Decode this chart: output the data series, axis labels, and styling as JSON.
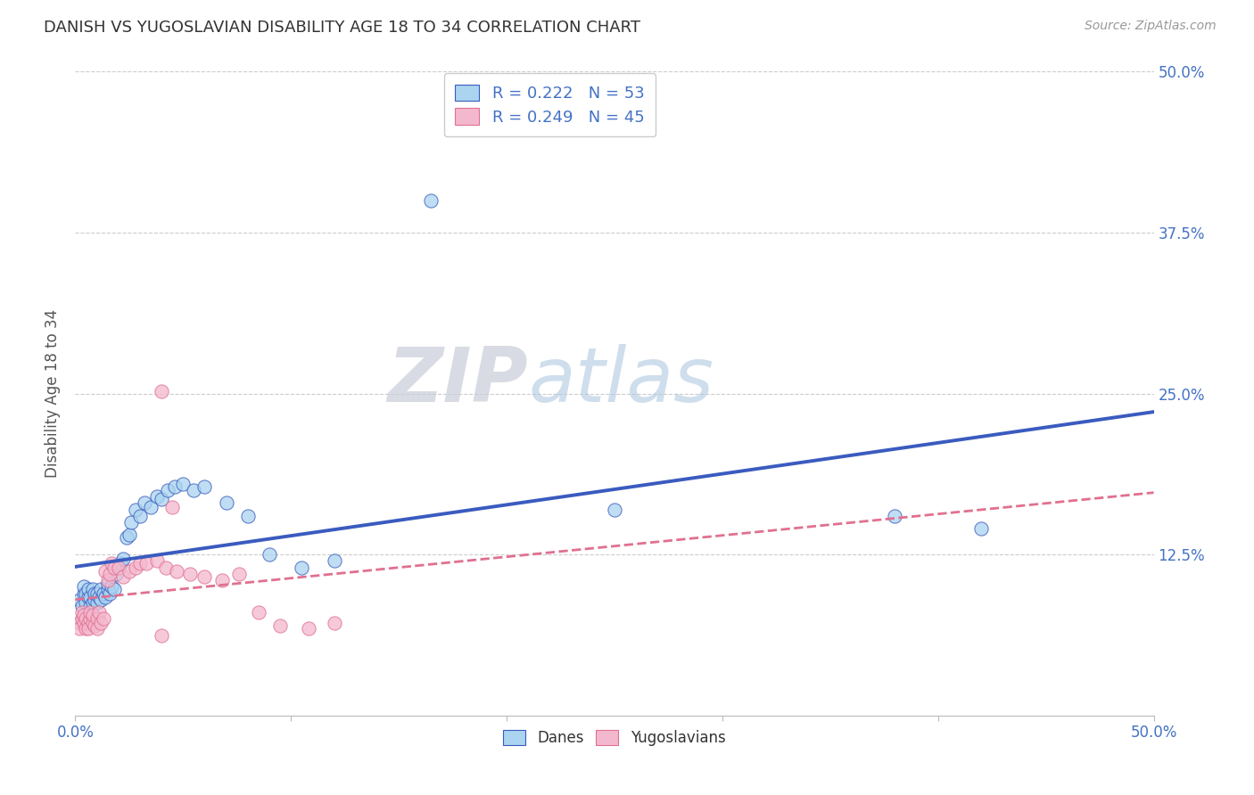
{
  "title": "DANISH VS YUGOSLAVIAN DISABILITY AGE 18 TO 34 CORRELATION CHART",
  "source": "Source: ZipAtlas.com",
  "ylabel": "Disability Age 18 to 34",
  "xlim": [
    0.0,
    0.5
  ],
  "ylim": [
    0.0,
    0.5
  ],
  "xtick_positions": [
    0.0,
    0.1,
    0.2,
    0.3,
    0.4,
    0.5
  ],
  "xticklabels": [
    "0.0%",
    "",
    "",
    "",
    "",
    "50.0%"
  ],
  "ytick_positions": [
    0.0,
    0.125,
    0.25,
    0.375,
    0.5
  ],
  "yticklabels": [
    "",
    "12.5%",
    "25.0%",
    "37.5%",
    "50.0%"
  ],
  "color_danes": "#aad4f0",
  "color_yugoslavians": "#f4b8ce",
  "trend_danes_color": "#3a5bbf",
  "trend_yugo_color": "#e07090",
  "watermark_zip": "ZIP",
  "watermark_atlas": "atlas",
  "danes_x": [
    0.002,
    0.003,
    0.004,
    0.004,
    0.005,
    0.005,
    0.006,
    0.006,
    0.007,
    0.007,
    0.008,
    0.008,
    0.009,
    0.009,
    0.01,
    0.01,
    0.011,
    0.012,
    0.012,
    0.013,
    0.014,
    0.015,
    0.015,
    0.016,
    0.017,
    0.018,
    0.019,
    0.02,
    0.021,
    0.022,
    0.024,
    0.025,
    0.026,
    0.028,
    0.03,
    0.032,
    0.035,
    0.038,
    0.04,
    0.043,
    0.046,
    0.05,
    0.055,
    0.06,
    0.07,
    0.08,
    0.09,
    0.105,
    0.12,
    0.165,
    0.25,
    0.38,
    0.42
  ],
  "danes_y": [
    0.09,
    0.085,
    0.095,
    0.1,
    0.088,
    0.095,
    0.092,
    0.098,
    0.085,
    0.092,
    0.088,
    0.098,
    0.09,
    0.095,
    0.088,
    0.095,
    0.092,
    0.098,
    0.09,
    0.095,
    0.092,
    0.098,
    0.102,
    0.095,
    0.1,
    0.098,
    0.11,
    0.115,
    0.118,
    0.122,
    0.138,
    0.14,
    0.15,
    0.16,
    0.155,
    0.165,
    0.162,
    0.17,
    0.168,
    0.175,
    0.178,
    0.18,
    0.175,
    0.178,
    0.165,
    0.155,
    0.125,
    0.115,
    0.12,
    0.4,
    0.16,
    0.155,
    0.145
  ],
  "yugo_x": [
    0.002,
    0.002,
    0.003,
    0.003,
    0.004,
    0.004,
    0.005,
    0.005,
    0.006,
    0.006,
    0.007,
    0.007,
    0.008,
    0.008,
    0.009,
    0.01,
    0.01,
    0.011,
    0.012,
    0.013,
    0.014,
    0.015,
    0.016,
    0.017,
    0.018,
    0.02,
    0.022,
    0.025,
    0.028,
    0.03,
    0.033,
    0.038,
    0.042,
    0.047,
    0.053,
    0.06,
    0.068,
    0.076,
    0.085,
    0.095,
    0.108,
    0.12,
    0.04,
    0.045,
    0.04
  ],
  "yugo_y": [
    0.072,
    0.068,
    0.075,
    0.08,
    0.072,
    0.078,
    0.068,
    0.075,
    0.072,
    0.068,
    0.075,
    0.08,
    0.072,
    0.078,
    0.07,
    0.075,
    0.068,
    0.08,
    0.072,
    0.075,
    0.112,
    0.105,
    0.11,
    0.118,
    0.115,
    0.115,
    0.108,
    0.112,
    0.115,
    0.118,
    0.118,
    0.12,
    0.115,
    0.112,
    0.11,
    0.108,
    0.105,
    0.11,
    0.08,
    0.07,
    0.068,
    0.072,
    0.252,
    0.162,
    0.062
  ]
}
